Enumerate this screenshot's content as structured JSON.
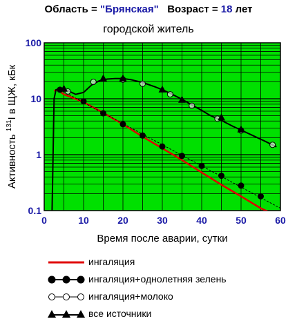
{
  "header": {
    "region_label": "Область = ",
    "region_value": "\"Брянская\"",
    "age_label": "Возраст = ",
    "age_value": "18",
    "age_unit": " лет"
  },
  "subtitle": "городской житель",
  "chart_data": {
    "type": "line",
    "ylabel_pre": "Активность ",
    "ylabel_sup": "131",
    "ylabel_post": "I в ЩЖ, кБк",
    "xlabel": "Время после аварии, сутки",
    "xlim": [
      0,
      60
    ],
    "ylim": [
      0.1,
      100
    ],
    "y_scale": "log",
    "x_ticks": [
      0,
      10,
      20,
      30,
      40,
      50,
      60
    ],
    "y_ticks": [
      {
        "v": 0.1,
        "label": "0.1"
      },
      {
        "v": 1,
        "label": "1"
      },
      {
        "v": 10,
        "label": "10"
      },
      {
        "v": 100,
        "label": "100"
      }
    ],
    "grid": true,
    "series": [
      {
        "name": "ингаляция",
        "color": "#e00000",
        "marker": "none",
        "x": [
          2.5,
          3.5,
          5,
          10,
          15,
          20,
          25,
          30,
          35,
          40,
          45,
          50,
          55,
          57
        ],
        "y": [
          14,
          14.3,
          12,
          8.7,
          5.6,
          3.5,
          2.1,
          1.3,
          0.8,
          0.48,
          0.29,
          0.18,
          0.11,
          0.095
        ]
      },
      {
        "name": "ингаляция+однолетняя зелень",
        "color": "#000000",
        "marker": "filled-circle",
        "x": [
          4,
          10,
          15,
          20,
          25,
          30,
          35,
          40,
          45,
          50,
          55
        ],
        "y": [
          14.5,
          9.0,
          5.5,
          3.5,
          2.2,
          1.4,
          0.95,
          0.63,
          0.42,
          0.28,
          0.18
        ]
      },
      {
        "name": "ингаляция+молоко",
        "color": "#000000",
        "marker": "open-circle",
        "x": [
          6,
          12.5,
          20,
          25,
          32,
          37.5,
          44,
          50,
          58
        ],
        "y": [
          13.5,
          20,
          22,
          18.5,
          12,
          7.5,
          4.4,
          2.7,
          1.5
        ]
      },
      {
        "name": "все источники",
        "color": "#000000",
        "marker": "filled-triangle",
        "x": [
          5,
          15,
          20,
          30,
          35,
          45,
          50
        ],
        "y": [
          15,
          23,
          23,
          14.5,
          9.5,
          4.6,
          2.8
        ]
      }
    ],
    "curve": {
      "name": "все источники (кривая)",
      "x": [
        2,
        2.5,
        3,
        4,
        6,
        8,
        10,
        12,
        14,
        16,
        18,
        20,
        22,
        25,
        28,
        30,
        32,
        35,
        38,
        40,
        42,
        45,
        48,
        50,
        53,
        56,
        59
      ],
      "y": [
        0.1,
        10,
        14.5,
        15,
        14,
        12,
        13,
        17.5,
        21,
        22.5,
        23,
        23,
        22,
        19.5,
        16.5,
        14.5,
        12.5,
        9.8,
        7.4,
        6.2,
        5.1,
        4.1,
        3.2,
        2.75,
        2.2,
        1.75,
        1.38
      ]
    }
  },
  "legend": [
    {
      "label": "ингаляция",
      "marker": "none",
      "color": "#e00000"
    },
    {
      "label": "ингаляция+однолетняя зелень",
      "marker": "filled-circle",
      "color": "#000000"
    },
    {
      "label": "ингаляция+молоко",
      "marker": "open-circle",
      "color": "#000000"
    },
    {
      "label": "все источники",
      "marker": "filled-triangle",
      "color": "#000000"
    }
  ],
  "colors": {
    "plot_background": "#00e000",
    "grid": "#000000"
  }
}
